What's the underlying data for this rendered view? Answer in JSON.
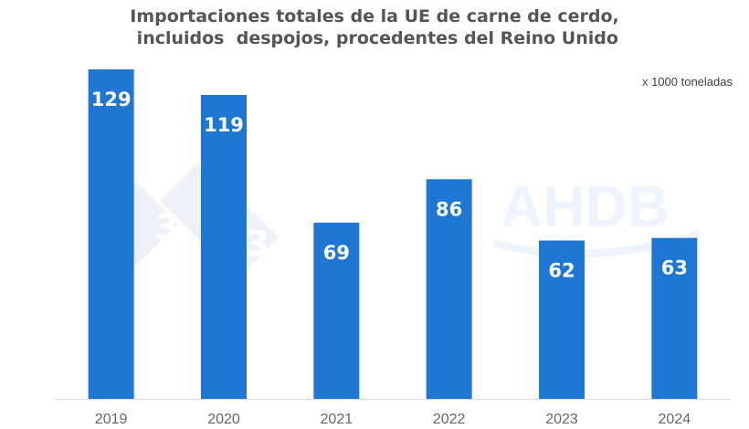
{
  "title_line1": "Importaciones totales de la UE de carne de cerdo,",
  "title_line2": " incluidos  despojos, procedentes del Reino Unido",
  "unit_label": "x 1000 toneladas",
  "watermarks": {
    "logo_text": "AHDB",
    "badge_digit": "3"
  },
  "colors": {
    "bar": "#1f77d4",
    "bar_label": "#ffffff",
    "axis_tick": "#666666",
    "axis_line": "#d9d9d9"
  },
  "chart_data": {
    "type": "bar",
    "title": "Importaciones totales de la UE de carne de cerdo, incluidos despojos, procedentes del Reino Unido",
    "categories": [
      "2019",
      "2020",
      "2021",
      "2022",
      "2023",
      "2024"
    ],
    "values": [
      129,
      119,
      69,
      86,
      62,
      63
    ],
    "value_labels": [
      "129",
      "119",
      "69",
      "86",
      "62",
      "63"
    ],
    "ylabel": "x 1000 toneladas",
    "ylim": [
      0,
      129
    ],
    "grid": false,
    "legend": "none"
  }
}
